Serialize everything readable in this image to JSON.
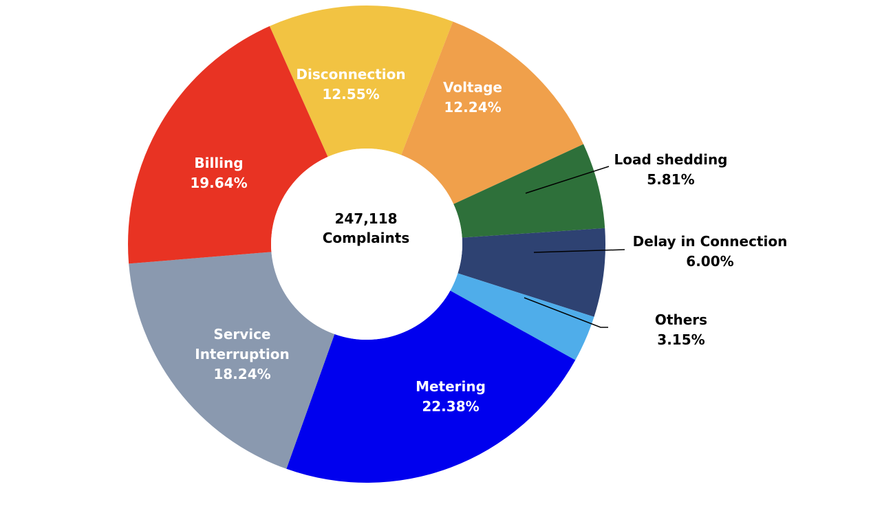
{
  "chart_data": {
    "type": "pie",
    "donut": true,
    "title": "",
    "center_label": [
      "247,118",
      "Complaints"
    ],
    "slices": [
      {
        "name": "Disconnection",
        "value": 12.55,
        "label_lines": [
          "Disconnection",
          "12.55%"
        ],
        "color": "#F2C342"
      },
      {
        "name": "Voltage",
        "value": 12.24,
        "label_lines": [
          "Voltage",
          "12.24%"
        ],
        "color": "#F0A04B"
      },
      {
        "name": "Load shedding",
        "value": 5.81,
        "label_lines": [
          "Load shedding",
          "5.81%"
        ],
        "color": "#2E703A"
      },
      {
        "name": "Delay in Connection",
        "value": 6.0,
        "label_lines": [
          "Delay in Connection",
          "6.00%"
        ],
        "color": "#2E4272"
      },
      {
        "name": "Others",
        "value": 3.15,
        "label_lines": [
          "Others",
          "3.15%"
        ],
        "color": "#4FADEA"
      },
      {
        "name": "Metering",
        "value": 22.38,
        "label_lines": [
          "Metering",
          "22.38%"
        ],
        "color": "#0000EE"
      },
      {
        "name": "Service Interruption",
        "value": 18.24,
        "label_lines": [
          "Service",
          "Interruption",
          "18.24%"
        ],
        "color": "#8A99AF"
      },
      {
        "name": "Billing",
        "value": 19.64,
        "label_lines": [
          "Billing",
          "19.64%"
        ],
        "color": "#E83323"
      }
    ],
    "legend": "none"
  }
}
